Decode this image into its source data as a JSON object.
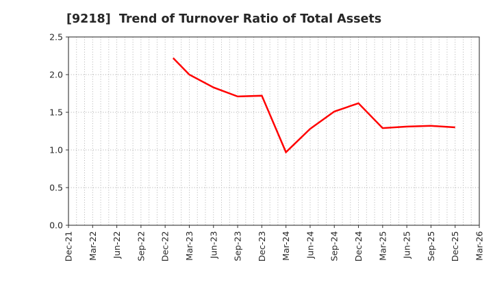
{
  "window": {
    "background": "#ffffff"
  },
  "chart_data": {
    "type": "line",
    "title": "[9218]  Trend of Turnover Ratio of Total Assets",
    "ticker": "9218",
    "metric": "Turnover Ratio of Total Assets",
    "x_axis": {
      "unit": "months since Dec-2021",
      "range_months": [
        0,
        51
      ],
      "tick_labels": [
        "Dec-21",
        "Mar-22",
        "Jun-22",
        "Sep-22",
        "Dec-22",
        "Mar-23",
        "Jun-23",
        "Sep-23",
        "Dec-23",
        "Mar-24",
        "Jun-24",
        "Sep-24",
        "Dec-24",
        "Mar-25",
        "Jun-25",
        "Sep-25",
        "Dec-25",
        "Mar-26"
      ],
      "tick_month_positions": [
        0,
        3,
        6,
        9,
        12,
        15,
        18,
        21,
        24,
        27,
        30,
        33,
        36,
        39,
        42,
        45,
        48,
        51
      ],
      "minor_gridline_every_month": true,
      "label_rotation_degrees": 90
    },
    "y_axis": {
      "range": [
        0,
        2.5
      ],
      "tick_labels": [
        "0.0",
        "0.5",
        "1.0",
        "1.5",
        "2.0",
        "2.5"
      ],
      "tick_values": [
        0.0,
        0.5,
        1.0,
        1.5,
        2.0,
        2.5
      ]
    },
    "grid": {
      "visible": true,
      "style": "dotted",
      "color": "#a6a6a6"
    },
    "legend": "none",
    "series": [
      {
        "name": "Turnover Ratio of Total Assets",
        "color": "#ff0000",
        "line_width": 2.5,
        "points": [
          {
            "month": "Jan-23",
            "m": 13,
            "value": 2.22
          },
          {
            "month": "Mar-23",
            "m": 15,
            "value": 2.0
          },
          {
            "month": "Jun-23",
            "m": 18,
            "value": 1.83
          },
          {
            "month": "Sep-23",
            "m": 21,
            "value": 1.71
          },
          {
            "month": "Dec-23",
            "m": 24,
            "value": 1.72
          },
          {
            "month": "Mar-24",
            "m": 27,
            "value": 0.97
          },
          {
            "month": "Jun-24",
            "m": 30,
            "value": 1.28
          },
          {
            "month": "Sep-24",
            "m": 33,
            "value": 1.51
          },
          {
            "month": "Dec-24",
            "m": 36,
            "value": 1.62
          },
          {
            "month": "Mar-25",
            "m": 39,
            "value": 1.29
          },
          {
            "month": "Jun-25",
            "m": 42,
            "value": 1.31
          },
          {
            "month": "Sep-25",
            "m": 45,
            "value": 1.32
          },
          {
            "month": "Dec-25",
            "m": 48,
            "value": 1.3
          }
        ]
      }
    ],
    "styles": {
      "text_color": "#262626",
      "spine_color": "#333333",
      "title_font_size": 17.5,
      "tick_font_size": 12.5
    }
  }
}
